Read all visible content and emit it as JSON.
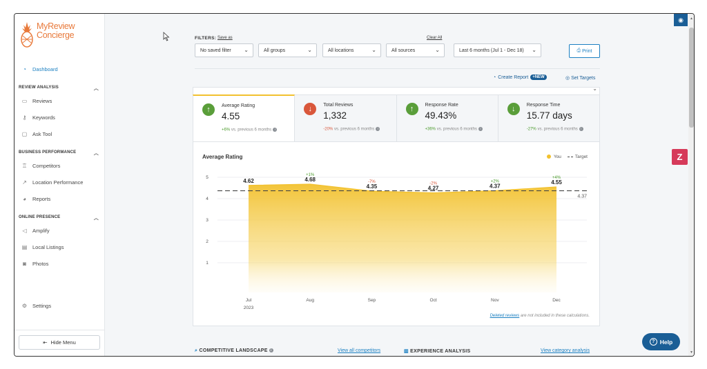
{
  "app": {
    "logo_line1": "MyReview",
    "logo_line2": "Concierge",
    "brand_color": "#e8793a",
    "accent_color": "#1a5e96"
  },
  "sidebar": {
    "dashboard": "Dashboard",
    "sections": [
      {
        "title": "REVIEW ANALYSIS",
        "items": [
          "Reviews",
          "Keywords",
          "Ask Tool"
        ]
      },
      {
        "title": "BUSINESS PERFORMANCE",
        "items": [
          "Competitors",
          "Location Performance",
          "Reports"
        ]
      },
      {
        "title": "ONLINE PRESENCE",
        "items": [
          "Amplify",
          "Local Listings",
          "Photos"
        ]
      }
    ],
    "settings": "Settings",
    "hide_menu": "Hide Menu"
  },
  "filters": {
    "label": "FILTERS:",
    "save_as": "Save as",
    "clear_all": "Clear All",
    "saved_filter": "No saved filter",
    "groups": "All groups",
    "locations": "All locations",
    "sources": "All sources",
    "date_range": "Last 6 months (Jul 1 - Dec 18)",
    "print": "Print"
  },
  "actions": {
    "create_report": "Create Report",
    "new_badge": "+NEW",
    "set_targets": "Set Targets"
  },
  "kpis": [
    {
      "label": "Average Rating",
      "value": "4.55",
      "direction": "up",
      "change": "+6%",
      "change_text": "vs. previous 6 months"
    },
    {
      "label": "Total Reviews",
      "value": "1,332",
      "direction": "down",
      "change": "-20%",
      "change_text": "vs. previous 6 months"
    },
    {
      "label": "Response Rate",
      "value": "49.43%",
      "direction": "up",
      "change": "+36%",
      "change_text": "vs. previous 6 months"
    },
    {
      "label": "Response Time",
      "value": "15.77 days",
      "direction": "down",
      "change": "-27%",
      "change_text": "vs. previous 6 months"
    }
  ],
  "chart_data": {
    "type": "area",
    "title": "Average Rating",
    "categories": [
      "Jul",
      "Aug",
      "Sep",
      "Oct",
      "Nov",
      "Dec"
    ],
    "year_label": "2023",
    "series": [
      {
        "name": "You",
        "values": [
          4.62,
          4.68,
          4.35,
          4.27,
          4.37,
          4.55
        ],
        "labels": [
          "4.62",
          "4.68",
          "4.35",
          "4.27",
          "4.37",
          "4.55"
        ],
        "changes": [
          "",
          "+1%",
          "-7%",
          "-2%",
          "+2%",
          "+4%"
        ],
        "color": "#f2c12e"
      }
    ],
    "target": {
      "name": "Target",
      "value": 4.37,
      "label": "4.37"
    },
    "yticks": [
      "1",
      "2",
      "3",
      "4",
      "5"
    ],
    "ylim": [
      0,
      5
    ],
    "legend": {
      "you": "You",
      "target": "Target"
    }
  },
  "footnote": {
    "link": "Deleted reviews",
    "text": "are not included in these calculations."
  },
  "bottom": {
    "competitive": "COMPETITIVE LANDSCAPE",
    "view_all": "View all competitors",
    "experience": "EXPERIENCE ANALYSIS",
    "view_category": "View category analysis"
  },
  "help": "Help"
}
